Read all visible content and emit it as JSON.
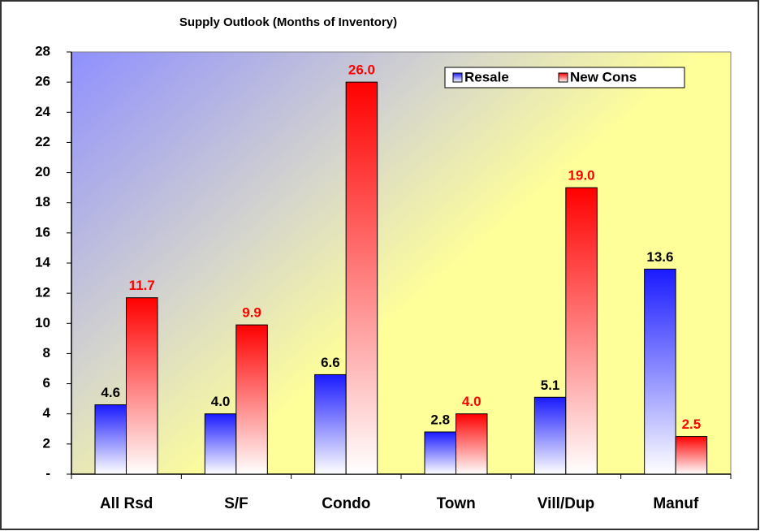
{
  "chart_data": {
    "type": "bar",
    "title": "Supply Outlook (Months of Inventory)",
    "categories": [
      "All Rsd",
      "S/F",
      "Condo",
      "Town",
      "Vill/Dup",
      "Manuf"
    ],
    "series": [
      {
        "name": "Resale",
        "color": "#1a1aff",
        "label_color": "#000000",
        "values": [
          4.6,
          4.0,
          6.6,
          2.8,
          5.1,
          13.6
        ],
        "value_labels": [
          "4.6",
          "4.0",
          "6.6",
          "2.8",
          "5.1",
          "13.6"
        ]
      },
      {
        "name": "New Cons",
        "color": "#ff0000",
        "label_color": "#ff0000",
        "values": [
          11.7,
          9.9,
          26.0,
          4.0,
          19.0,
          2.5
        ],
        "value_labels": [
          "11.7",
          "9.9",
          "26.0",
          "4.0",
          "19.0",
          "2.5"
        ]
      }
    ],
    "ylim": [
      0,
      28
    ],
    "yticks": [
      {
        "value": 0,
        "label": "-"
      },
      2,
      4,
      6,
      8,
      10,
      12,
      14,
      16,
      18,
      20,
      22,
      24,
      26,
      28
    ],
    "legend": "top-right"
  }
}
